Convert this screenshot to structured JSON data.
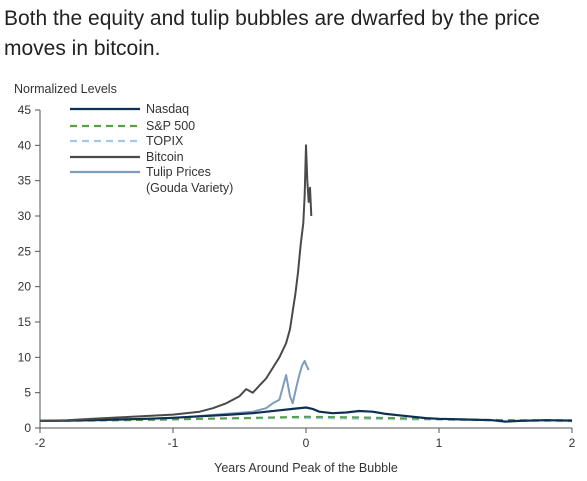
{
  "title": "Both the equity and tulip bubbles are dwarfed by the price moves in bitcoin.",
  "chart_data": {
    "type": "line",
    "ylabel": "Normalized Levels",
    "xlabel": "Years Around Peak of the Bubble",
    "xlim": [
      -2,
      2
    ],
    "ylim": [
      0,
      45
    ],
    "x_ticks": [
      -2,
      -1,
      0,
      1,
      2
    ],
    "y_ticks": [
      0,
      5,
      10,
      15,
      20,
      25,
      30,
      35,
      40,
      45
    ],
    "grid": false,
    "legend_position": "top-left",
    "series": [
      {
        "name": "Nasdaq",
        "color": "#0d2f52",
        "dash": "solid",
        "points": [
          [
            -2,
            1.0
          ],
          [
            -1.8,
            1.05
          ],
          [
            -1.6,
            1.1
          ],
          [
            -1.4,
            1.2
          ],
          [
            -1.2,
            1.3
          ],
          [
            -1.0,
            1.45
          ],
          [
            -0.8,
            1.65
          ],
          [
            -0.6,
            1.85
          ],
          [
            -0.4,
            2.1
          ],
          [
            -0.2,
            2.5
          ],
          [
            -0.1,
            2.7
          ],
          [
            0,
            2.9
          ],
          [
            0.05,
            2.7
          ],
          [
            0.1,
            2.3
          ],
          [
            0.2,
            2.1
          ],
          [
            0.3,
            2.2
          ],
          [
            0.4,
            2.4
          ],
          [
            0.5,
            2.3
          ],
          [
            0.6,
            2.0
          ],
          [
            0.7,
            1.8
          ],
          [
            0.8,
            1.6
          ],
          [
            0.9,
            1.4
          ],
          [
            1.0,
            1.3
          ],
          [
            1.2,
            1.2
          ],
          [
            1.4,
            1.1
          ],
          [
            1.5,
            0.9
          ],
          [
            1.6,
            1.0
          ],
          [
            1.8,
            1.1
          ],
          [
            2.0,
            1.05
          ]
        ]
      },
      {
        "name": "S&P 500",
        "color": "#5a9e4b",
        "dash": "dashed",
        "points": [
          [
            -2,
            1.0
          ],
          [
            -1.6,
            1.05
          ],
          [
            -1.2,
            1.15
          ],
          [
            -0.8,
            1.3
          ],
          [
            -0.4,
            1.45
          ],
          [
            -0.1,
            1.55
          ],
          [
            0,
            1.6
          ],
          [
            0.4,
            1.5
          ],
          [
            0.8,
            1.35
          ],
          [
            1.2,
            1.2
          ],
          [
            1.6,
            1.1
          ],
          [
            2.0,
            1.1
          ]
        ]
      },
      {
        "name": "TOPIX",
        "color": "#a6c8e4",
        "dash": "dashed",
        "points": [
          [
            -2,
            1.0
          ],
          [
            -1.6,
            1.05
          ],
          [
            -1.2,
            1.1
          ],
          [
            -0.8,
            1.25
          ],
          [
            -0.4,
            1.35
          ],
          [
            -0.1,
            1.45
          ],
          [
            0,
            1.4
          ],
          [
            0.4,
            1.3
          ],
          [
            0.8,
            1.2
          ],
          [
            1.2,
            1.1
          ],
          [
            1.6,
            1.0
          ],
          [
            2.0,
            0.95
          ]
        ]
      },
      {
        "name": "Bitcoin",
        "color": "#4a4a4a",
        "dash": "solid",
        "points": [
          [
            -2,
            1.0
          ],
          [
            -1.8,
            1.1
          ],
          [
            -1.6,
            1.3
          ],
          [
            -1.4,
            1.5
          ],
          [
            -1.2,
            1.7
          ],
          [
            -1.0,
            1.9
          ],
          [
            -0.8,
            2.3
          ],
          [
            -0.7,
            2.8
          ],
          [
            -0.6,
            3.5
          ],
          [
            -0.5,
            4.5
          ],
          [
            -0.45,
            5.5
          ],
          [
            -0.4,
            5.0
          ],
          [
            -0.35,
            6.0
          ],
          [
            -0.3,
            7.0
          ],
          [
            -0.25,
            8.5
          ],
          [
            -0.2,
            10.0
          ],
          [
            -0.15,
            12.0
          ],
          [
            -0.12,
            14.0
          ],
          [
            -0.1,
            16.5
          ],
          [
            -0.08,
            19.0
          ],
          [
            -0.06,
            22.0
          ],
          [
            -0.04,
            26.0
          ],
          [
            -0.02,
            29.0
          ],
          [
            -0.01,
            33.0
          ],
          [
            0,
            40.0
          ],
          [
            0.01,
            35.0
          ],
          [
            0.02,
            32.0
          ],
          [
            0.03,
            34.0
          ],
          [
            0.04,
            30.0
          ]
        ]
      },
      {
        "name": "Tulip Prices (Gouda Variety)",
        "color": "#7e9cbc",
        "dash": "solid",
        "points": [
          [
            -2,
            1.0
          ],
          [
            -1.6,
            1.1
          ],
          [
            -1.2,
            1.3
          ],
          [
            -1.0,
            1.4
          ],
          [
            -0.8,
            1.7
          ],
          [
            -0.6,
            2.0
          ],
          [
            -0.4,
            2.3
          ],
          [
            -0.3,
            2.8
          ],
          [
            -0.25,
            3.5
          ],
          [
            -0.2,
            4.0
          ],
          [
            -0.15,
            7.5
          ],
          [
            -0.12,
            4.5
          ],
          [
            -0.1,
            3.5
          ],
          [
            -0.07,
            6.0
          ],
          [
            -0.05,
            7.5
          ],
          [
            -0.03,
            8.8
          ],
          [
            -0.01,
            9.5
          ],
          [
            0,
            9.0
          ],
          [
            0.02,
            8.2
          ]
        ]
      }
    ]
  }
}
